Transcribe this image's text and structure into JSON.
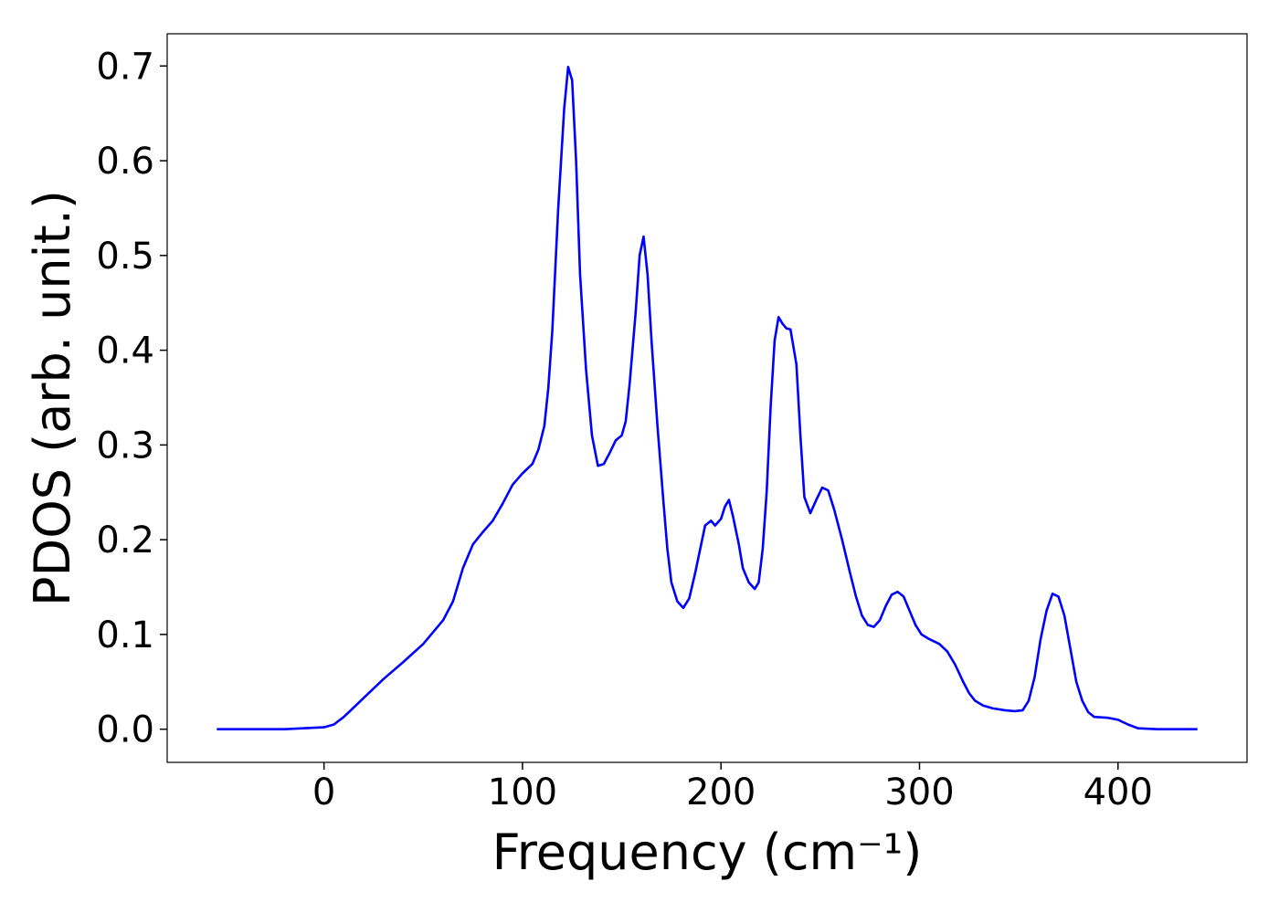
{
  "chart_data": {
    "type": "line",
    "xlabel": "Frequency (cm⁻¹)",
    "ylabel": "PDOS (arb. unit.)",
    "xlim": [
      -79,
      465
    ],
    "ylim": [
      -0.035,
      0.734
    ],
    "xticks": [
      0,
      100,
      200,
      300,
      400
    ],
    "yticks": [
      {
        "value": 0,
        "label": "0.0"
      },
      0.1,
      0.2,
      0.3,
      0.4,
      0.5,
      0.6,
      0.7
    ],
    "grid": false,
    "x": [
      -54,
      -20,
      0,
      5,
      10,
      20,
      30,
      40,
      50,
      60,
      65,
      70,
      75,
      80,
      85,
      90,
      95,
      100,
      105,
      108,
      111,
      113,
      115,
      118,
      121,
      123,
      125,
      127,
      129,
      132,
      135,
      138,
      141,
      144,
      147,
      150,
      152,
      154,
      157,
      159,
      161,
      163,
      165,
      168,
      171,
      173,
      175,
      178,
      181,
      184,
      187,
      190,
      192,
      195,
      197,
      200,
      202,
      204,
      206,
      209,
      211,
      214,
      217,
      219,
      221,
      223,
      225,
      227,
      229,
      231,
      233,
      235,
      238,
      240,
      242,
      245,
      248,
      251,
      254,
      257,
      261,
      265,
      268,
      271,
      274,
      277,
      280,
      283,
      286,
      289,
      292,
      295,
      298,
      301,
      305,
      310,
      314,
      318,
      322,
      325,
      328,
      332,
      337,
      343,
      348,
      352,
      355,
      358,
      361,
      364,
      367,
      370,
      373,
      376,
      379,
      382,
      385,
      388,
      395,
      400,
      405,
      410,
      420,
      440
    ],
    "series": [
      {
        "color": "#0000ff",
        "values": [
          0,
          0,
          0.002,
          0.005,
          0.013,
          0.033,
          0.053,
          0.071,
          0.09,
          0.115,
          0.135,
          0.17,
          0.195,
          0.208,
          0.22,
          0.238,
          0.258,
          0.27,
          0.28,
          0.295,
          0.32,
          0.36,
          0.42,
          0.55,
          0.655,
          0.699,
          0.685,
          0.6,
          0.48,
          0.38,
          0.31,
          0.278,
          0.28,
          0.292,
          0.305,
          0.31,
          0.325,
          0.365,
          0.44,
          0.5,
          0.52,
          0.48,
          0.41,
          0.32,
          0.24,
          0.19,
          0.155,
          0.135,
          0.128,
          0.138,
          0.165,
          0.195,
          0.215,
          0.22,
          0.215,
          0.222,
          0.235,
          0.242,
          0.225,
          0.195,
          0.17,
          0.155,
          0.148,
          0.155,
          0.19,
          0.25,
          0.34,
          0.41,
          0.435,
          0.428,
          0.423,
          0.422,
          0.385,
          0.31,
          0.245,
          0.228,
          0.242,
          0.255,
          0.252,
          0.232,
          0.2,
          0.165,
          0.14,
          0.12,
          0.11,
          0.108,
          0.115,
          0.13,
          0.142,
          0.145,
          0.14,
          0.125,
          0.11,
          0.1,
          0.095,
          0.09,
          0.082,
          0.068,
          0.05,
          0.038,
          0.03,
          0.025,
          0.022,
          0.02,
          0.019,
          0.02,
          0.03,
          0.055,
          0.095,
          0.125,
          0.143,
          0.14,
          0.12,
          0.085,
          0.05,
          0.03,
          0.018,
          0.013,
          0.012,
          0.01,
          0.005,
          0.001,
          0,
          0
        ]
      }
    ]
  }
}
